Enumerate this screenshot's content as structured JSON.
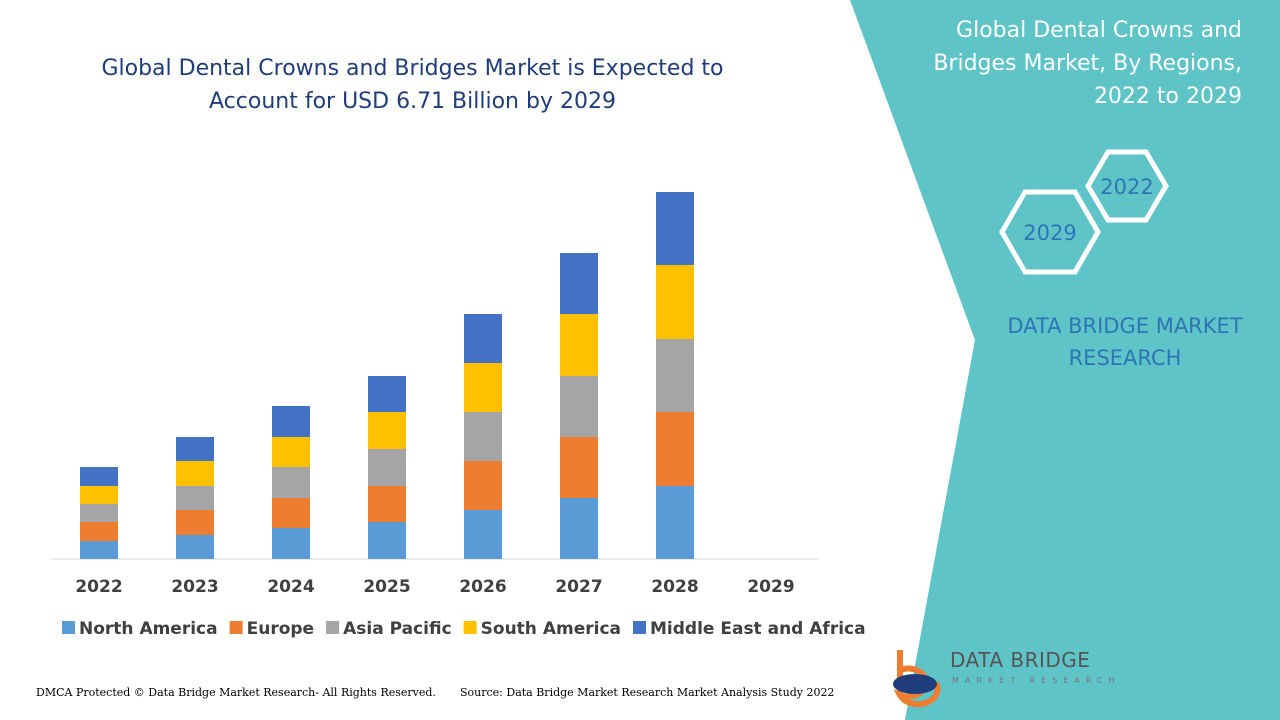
{
  "chart_data": {
    "type": "bar",
    "stacked": true,
    "title": "Global Dental Crowns and Bridges Market is Expected to Account for USD 6.71 Billion by 2029",
    "categories": [
      "2022",
      "2023",
      "2024",
      "2025",
      "2026",
      "2027",
      "2028",
      "2029"
    ],
    "series": [
      {
        "name": "North America",
        "color": "#5b9bd5",
        "values": [
          18,
          24,
          31,
          37,
          49,
          61,
          73,
          null
        ]
      },
      {
        "name": "Europe",
        "color": "#ed7d31",
        "values": [
          19,
          25,
          30,
          36,
          49,
          61,
          74,
          null
        ]
      },
      {
        "name": "Asia Pacific",
        "color": "#a5a5a5",
        "values": [
          18,
          24,
          31,
          37,
          49,
          61,
          73,
          null
        ]
      },
      {
        "name": "South America",
        "color": "#ffc000",
        "values": [
          18,
          25,
          30,
          37,
          49,
          62,
          74,
          null
        ]
      },
      {
        "name": "Middle East and Africa",
        "color": "#4472c4",
        "values": [
          19,
          24,
          31,
          36,
          49,
          61,
          73,
          null
        ]
      }
    ],
    "legend": "bottom"
  },
  "side_panel": {
    "title": "Global Dental Crowns and Bridges Market, By Regions, 2022 to 2029",
    "hexagons": [
      "2022",
      "2029"
    ],
    "brand": "DATA BRIDGE MARKET RESEARCH"
  },
  "footer": {
    "left": "DMCA Protected © Data Bridge Market Research- All Rights Reserved.",
    "source": "Source: Data Bridge Market Research Market Analysis Study 2022",
    "logo": "DATA BRIDGE",
    "logo_sub": "MARKET RESEARCH"
  }
}
